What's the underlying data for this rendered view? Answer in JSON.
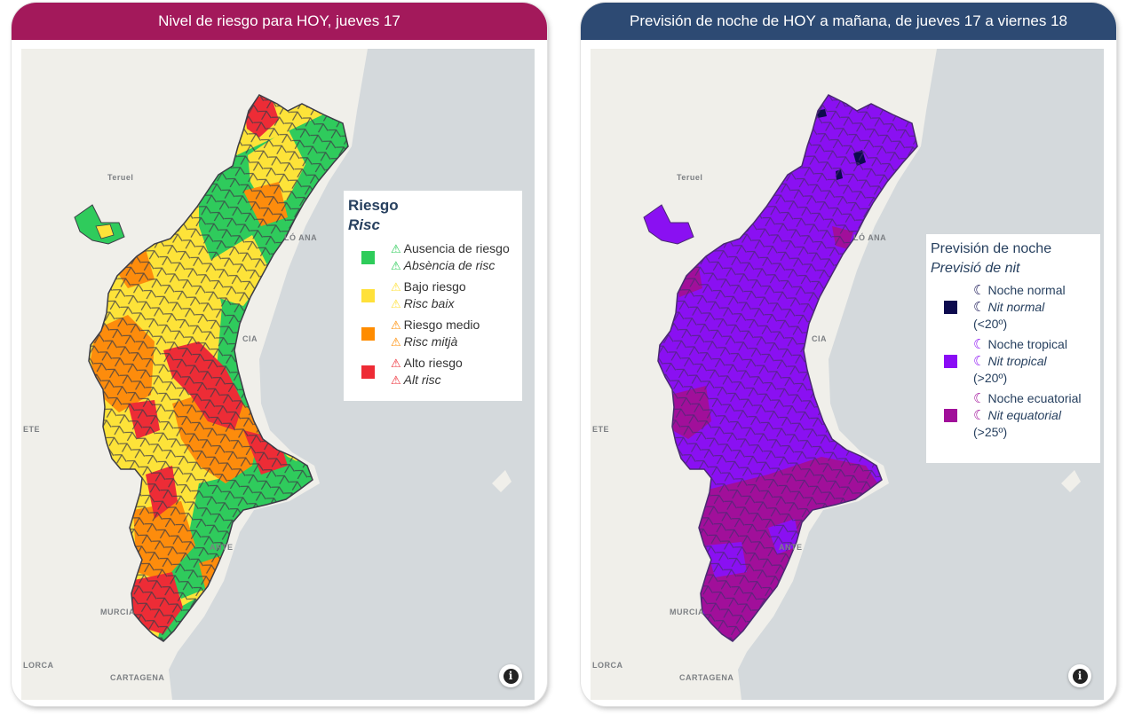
{
  "left_panel": {
    "title": "Nivel de riesgo para HOY, jueves 17",
    "legend": {
      "title": "Riesgo",
      "subtitle": "Risc",
      "items": [
        {
          "label": "Ausencia de riesgo",
          "label_va": "Absència de risc",
          "color": "#2ecc5a",
          "icon": "warning-triangle-icon"
        },
        {
          "label": "Bajo riesgo",
          "label_va": "Risc baix",
          "color": "#ffe13a",
          "icon": "warning-triangle-icon"
        },
        {
          "label": "Riesgo medio",
          "label_va": "Risc mitjà",
          "color": "#ff8c00",
          "icon": "warning-triangle-icon"
        },
        {
          "label": "Alto riesgo",
          "label_va": "Alt risc",
          "color": "#ee2b35",
          "icon": "warning-triangle-icon"
        }
      ]
    },
    "places": {
      "teruel": "Teruel",
      "castello": "LÓ ANA",
      "valencia": "CIA",
      "albacete": "ETE",
      "alacant": "ANTE",
      "murcia": "MURCIA",
      "lorca": "LORCA",
      "cartagena": "CARTAGENA"
    },
    "info": "i"
  },
  "right_panel": {
    "title": "Previsión de noche de HOY a mañana, de jueves 17 a viernes 18",
    "legend": {
      "title": "Previsión de noche",
      "subtitle": "Previsió de nit",
      "items": [
        {
          "label": "Noche normal",
          "label_va": "Nit normal",
          "range": "(<20º)",
          "color": "#0d0b4e",
          "icon": "crescent-moon-icon"
        },
        {
          "label": "Noche tropical",
          "label_va": "Nit tropical",
          "range": "(>20º)",
          "color": "#8a0cf5",
          "icon": "crescent-moon-icon"
        },
        {
          "label": "Noche ecuatorial",
          "label_va": "Nit equatorial",
          "range": "(>25º)",
          "color": "#a10f9a",
          "icon": "crescent-moon-icon"
        }
      ]
    },
    "places": {
      "teruel": "Teruel",
      "castello": "LÓ ANA",
      "valencia": "CIA",
      "albacete": "ETE",
      "alacant": "ANTE",
      "murcia": "MURCIA",
      "lorca": "LORCA",
      "cartagena": "CARTAGENA"
    },
    "info": "i"
  }
}
